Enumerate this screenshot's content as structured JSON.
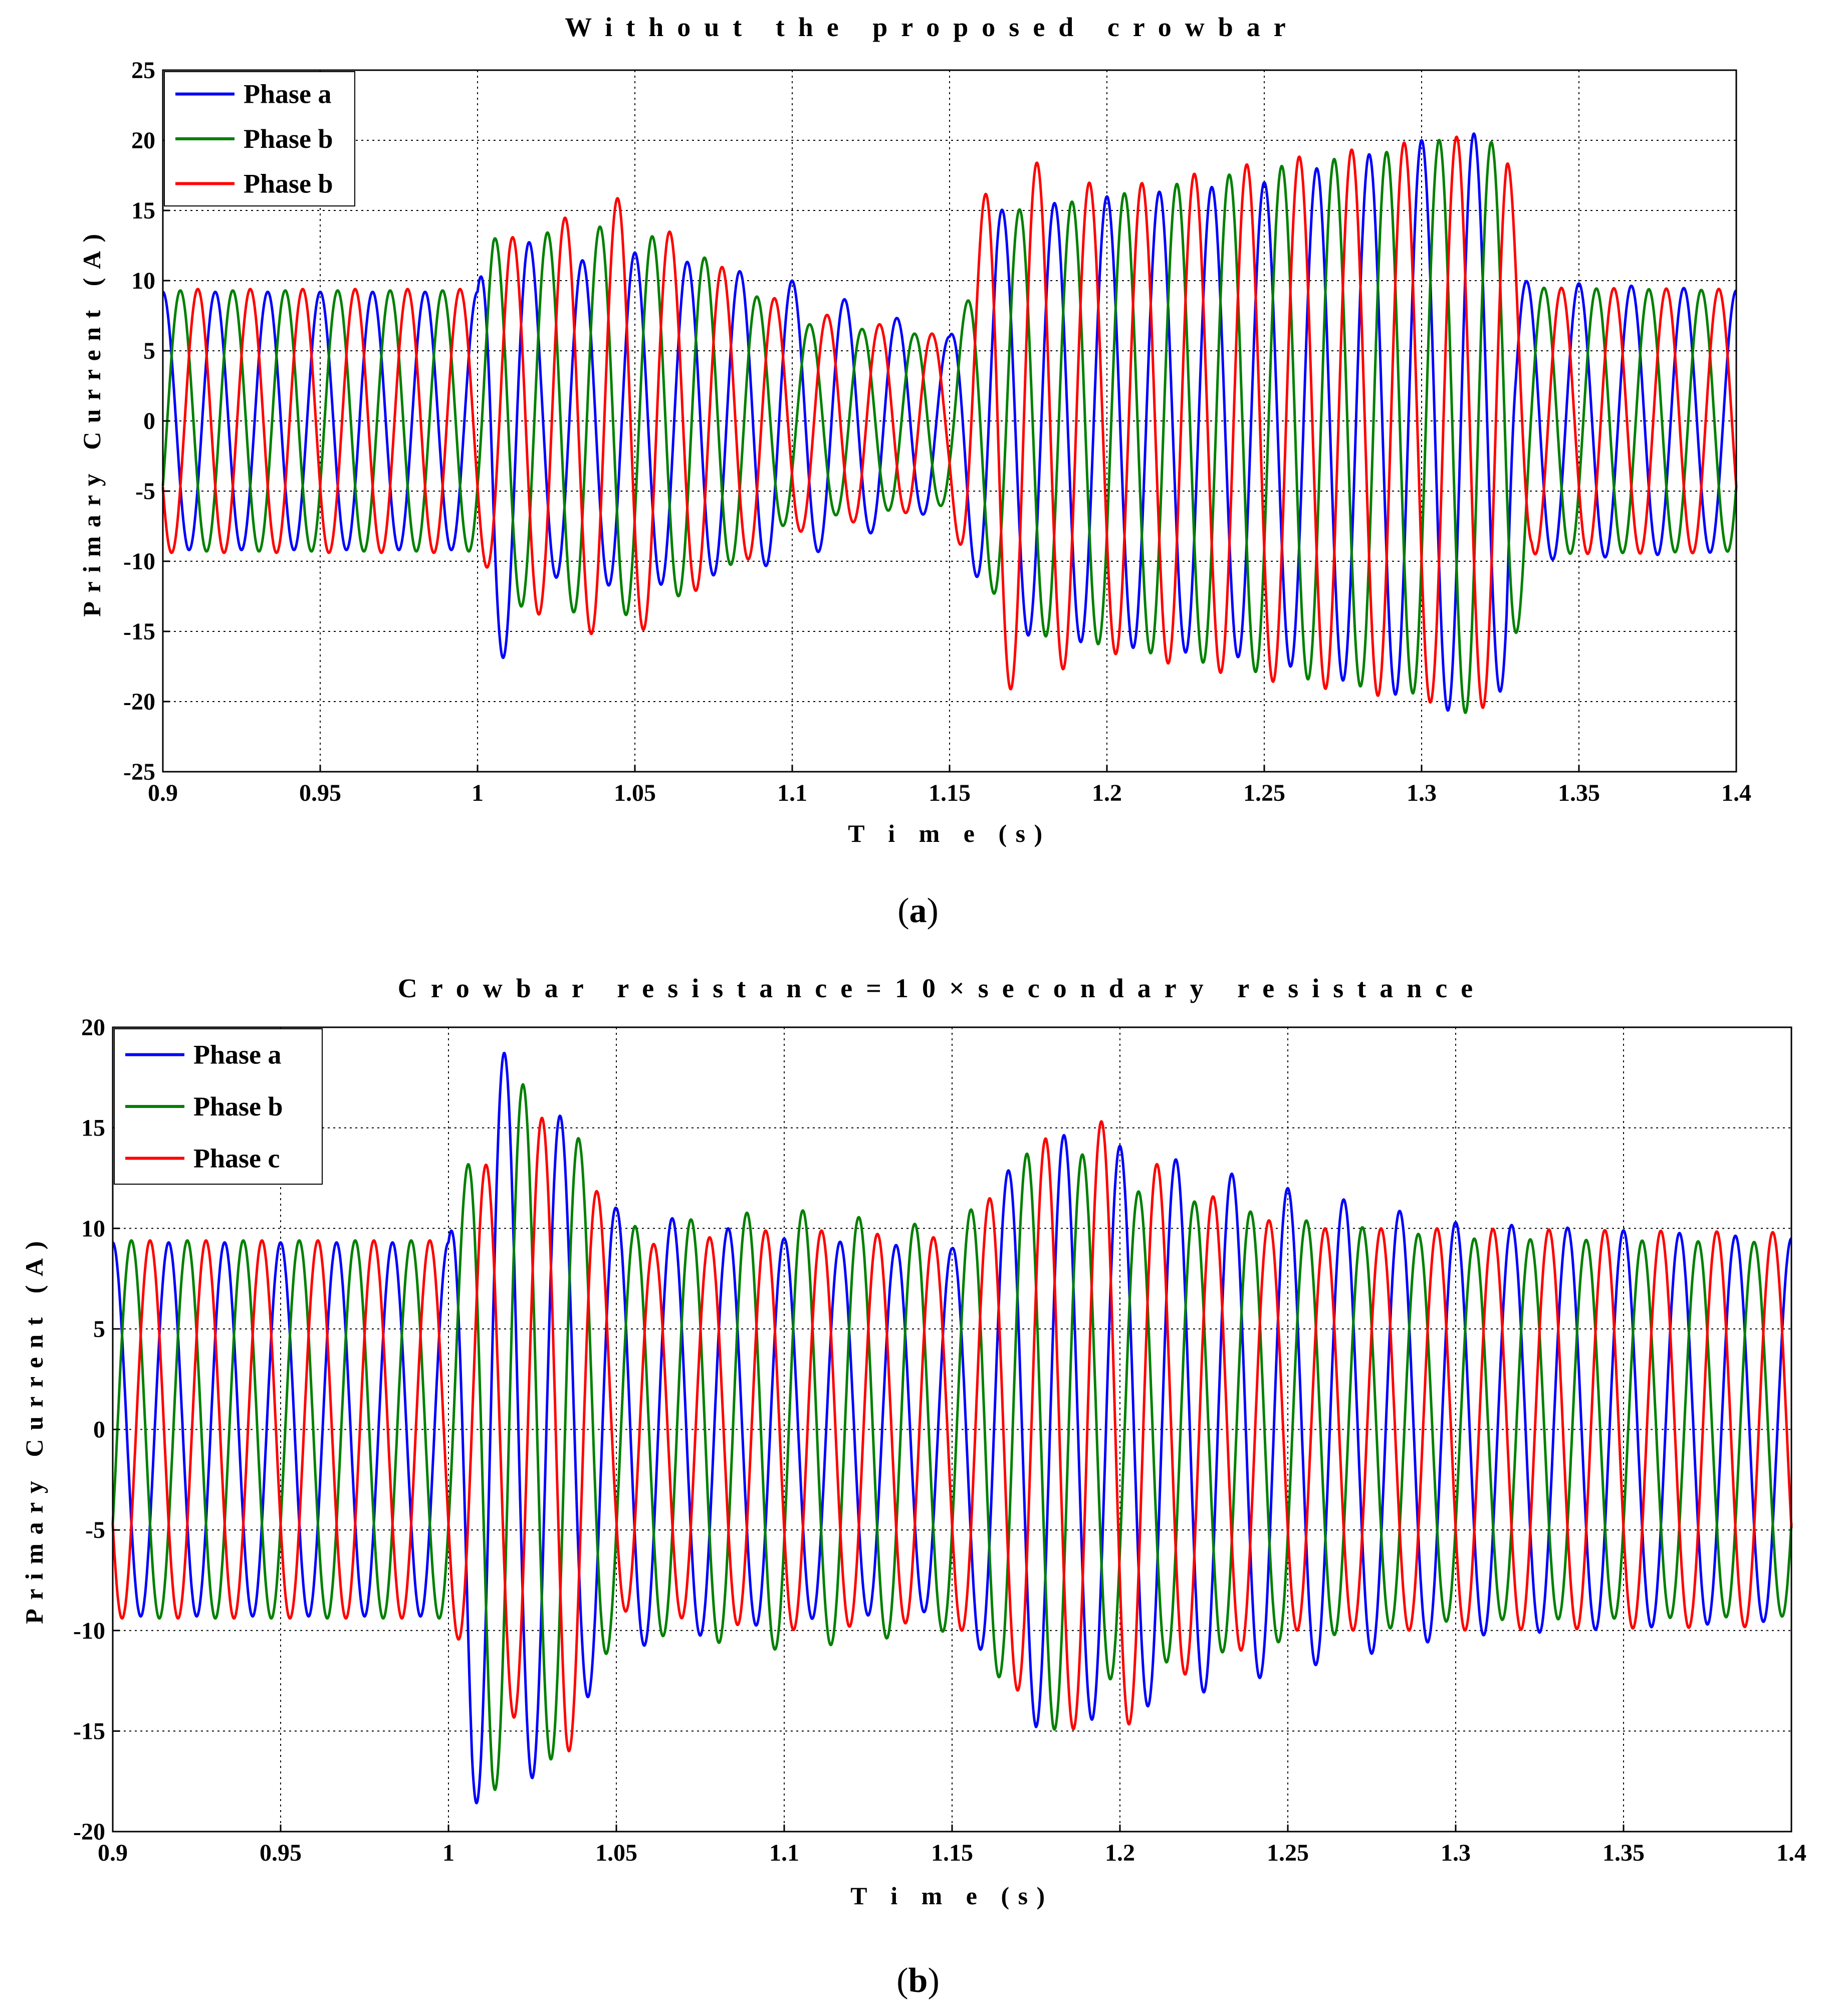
{
  "chart_data": [
    {
      "type": "line",
      "panel_label": "a",
      "title": "Without the proposed crowbar",
      "xlabel": "T i m e (s)",
      "ylabel": "Primary Current (A)",
      "xlim": [
        0.9,
        1.4
      ],
      "ylim": [
        -25,
        25
      ],
      "xticks": [
        "0.9",
        "0.95",
        "1",
        "1.05",
        "1.1",
        "1.15",
        "1.2",
        "1.25",
        "1.3",
        "1.35",
        "1.4"
      ],
      "yticks": [
        "25",
        "20",
        "15",
        "10",
        "5",
        "0",
        "-5",
        "-10",
        "-15",
        "-20",
        "-25"
      ],
      "grid": true,
      "legend_position": "top-left",
      "frequency_hz": 60,
      "series": [
        {
          "name": "Phase a",
          "color": "#0000ff",
          "phase_deg": 90,
          "envelope": [
            [
              0.9,
              9.2
            ],
            [
              1.0,
              9.2
            ],
            [
              1.005,
              18.5
            ],
            [
              1.02,
              11
            ],
            [
              1.05,
              12
            ],
            [
              1.1,
              10
            ],
            [
              1.15,
              6
            ],
            [
              1.165,
              15
            ],
            [
              1.2,
              16
            ],
            [
              1.25,
              17
            ],
            [
              1.3,
              20
            ],
            [
              1.313,
              21
            ],
            [
              1.327,
              19
            ],
            [
              1.33,
              10
            ],
            [
              1.4,
              9.3
            ]
          ]
        },
        {
          "name": "Phase b",
          "color": "#008000",
          "phase_deg": -30,
          "envelope": [
            [
              0.9,
              9.3
            ],
            [
              1.0,
              9.3
            ],
            [
              1.005,
              13
            ],
            [
              1.045,
              14
            ],
            [
              1.07,
              12
            ],
            [
              1.1,
              7
            ],
            [
              1.15,
              6
            ],
            [
              1.17,
              15
            ],
            [
              1.2,
              16
            ],
            [
              1.25,
              18
            ],
            [
              1.3,
              19.5
            ],
            [
              1.316,
              21
            ],
            [
              1.327,
              19
            ],
            [
              1.335,
              9.5
            ],
            [
              1.4,
              9.3
            ]
          ]
        },
        {
          "name": "Phase b",
          "color": "#ff0000",
          "phase_deg": 210,
          "envelope": [
            [
              0.9,
              9.4
            ],
            [
              1.0,
              9.4
            ],
            [
              1.01,
              13
            ],
            [
              1.046,
              16
            ],
            [
              1.07,
              12
            ],
            [
              1.1,
              8
            ],
            [
              1.15,
              6
            ],
            [
              1.165,
              19.5
            ],
            [
              1.2,
              16.5
            ],
            [
              1.25,
              18.5
            ],
            [
              1.3,
              20
            ],
            [
              1.322,
              20.5
            ],
            [
              1.327,
              19
            ],
            [
              1.335,
              9.5
            ],
            [
              1.4,
              9.4
            ]
          ]
        }
      ]
    },
    {
      "type": "line",
      "panel_label": "b",
      "title": "Crowbar resistance=10×secondary resistance",
      "xlabel": "T i m e (s)",
      "ylabel": "Primary Current (A)",
      "xlim": [
        0.9,
        1.4
      ],
      "ylim": [
        -20,
        20
      ],
      "xticks": [
        "0.9",
        "0.95",
        "1",
        "1.05",
        "1.1",
        "1.15",
        "1.2",
        "1.25",
        "1.3",
        "1.35",
        "1.4"
      ],
      "yticks": [
        "20",
        "15",
        "10",
        "5",
        "0",
        "-5",
        "-10",
        "-15",
        "-20"
      ],
      "grid": true,
      "legend_position": "top-left",
      "frequency_hz": 60,
      "series": [
        {
          "name": "Phase a",
          "color": "#0000ff",
          "phase_deg": 90,
          "envelope": [
            [
              0.9,
              9.3
            ],
            [
              1.0,
              9.3
            ],
            [
              1.007,
              18.5
            ],
            [
              1.015,
              19
            ],
            [
              1.03,
              16.5
            ],
            [
              1.05,
              11
            ],
            [
              1.1,
              9.5
            ],
            [
              1.15,
              9
            ],
            [
              1.175,
              14.8
            ],
            [
              1.19,
              14.5
            ],
            [
              1.215,
              13.5
            ],
            [
              1.25,
              12
            ],
            [
              1.3,
              10.3
            ],
            [
              1.4,
              9.5
            ]
          ]
        },
        {
          "name": "Phase b",
          "color": "#008000",
          "phase_deg": -30,
          "envelope": [
            [
              0.9,
              9.4
            ],
            [
              1.0,
              9.4
            ],
            [
              1.013,
              18
            ],
            [
              1.035,
              16
            ],
            [
              1.05,
              10
            ],
            [
              1.1,
              11
            ],
            [
              1.15,
              10
            ],
            [
              1.18,
              15
            ],
            [
              1.2,
              12
            ],
            [
              1.25,
              10.5
            ],
            [
              1.3,
              9.5
            ],
            [
              1.4,
              9.3
            ]
          ]
        },
        {
          "name": "Phase c",
          "color": "#ff0000",
          "phase_deg": 210,
          "envelope": [
            [
              0.9,
              9.4
            ],
            [
              1.0,
              9.4
            ],
            [
              1.01,
              13
            ],
            [
              1.035,
              16.5
            ],
            [
              1.05,
              9
            ],
            [
              1.1,
              10
            ],
            [
              1.15,
              9.5
            ],
            [
              1.178,
              14.5
            ],
            [
              1.198,
              15.5
            ],
            [
              1.215,
              12.5
            ],
            [
              1.25,
              10
            ],
            [
              1.3,
              10
            ],
            [
              1.4,
              9.8
            ]
          ]
        }
      ]
    }
  ]
}
